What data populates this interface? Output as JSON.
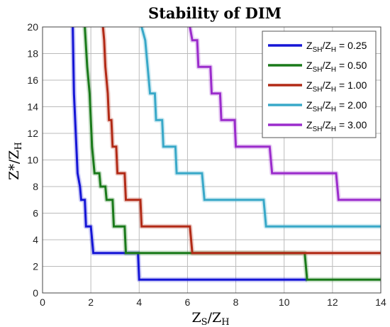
{
  "chart_data": {
    "type": "line",
    "title": "Stability of DIM",
    "xlabel": {
      "main": "Z",
      "sub1": "S",
      "slash": "/Z",
      "sub2": "H"
    },
    "ylabel": {
      "main": "Z*/Z",
      "sub": "H"
    },
    "xlim": [
      0,
      14
    ],
    "ylim": [
      0,
      20
    ],
    "xticks": [
      0,
      2,
      4,
      6,
      8,
      10,
      12,
      14
    ],
    "yticks": [
      0,
      2,
      4,
      6,
      8,
      10,
      12,
      14,
      16,
      18,
      20
    ],
    "grid": true,
    "legend_position": "top-right",
    "series": [
      {
        "name": "ZSH/ZH = 0.25",
        "legend": {
          "a": "Z",
          "asub": "SH",
          "b": "/Z",
          "bsub": "H",
          "value": " = 0.25"
        },
        "color": "#1515d6",
        "points": [
          [
            1.25,
            20
          ],
          [
            1.3,
            15
          ],
          [
            1.45,
            9
          ],
          [
            1.55,
            8
          ],
          [
            1.6,
            7
          ],
          [
            1.75,
            7
          ],
          [
            1.8,
            5
          ],
          [
            2.0,
            5
          ],
          [
            2.1,
            3
          ],
          [
            3.95,
            3
          ],
          [
            4.0,
            1
          ],
          [
            10.95,
            1
          ]
        ]
      },
      {
        "name": "ZSH/ZH = 0.50",
        "legend": {
          "a": "Z",
          "asub": "SH",
          "b": "/Z",
          "bsub": "H",
          "value": " = 0.50"
        },
        "color": "#1a7a1a",
        "points": [
          [
            1.75,
            20
          ],
          [
            1.85,
            17
          ],
          [
            1.95,
            15
          ],
          [
            2.0,
            13
          ],
          [
            2.05,
            11
          ],
          [
            2.15,
            9
          ],
          [
            2.35,
            9
          ],
          [
            2.4,
            8
          ],
          [
            2.6,
            8
          ],
          [
            2.65,
            7
          ],
          [
            2.9,
            7
          ],
          [
            2.95,
            5
          ],
          [
            3.4,
            5
          ],
          [
            3.45,
            3
          ],
          [
            10.85,
            3
          ],
          [
            10.95,
            1
          ],
          [
            14,
            1
          ]
        ]
      },
      {
        "name": "ZSH/ZH = 1.00",
        "legend": {
          "a": "Z",
          "asub": "SH",
          "b": "/Z",
          "bsub": "H",
          "value": " = 1.00"
        },
        "color": "#b22a16",
        "points": [
          [
            2.5,
            20
          ],
          [
            2.55,
            19
          ],
          [
            2.6,
            17
          ],
          [
            2.7,
            15
          ],
          [
            2.75,
            13
          ],
          [
            2.85,
            13
          ],
          [
            2.9,
            11
          ],
          [
            3.05,
            11
          ],
          [
            3.1,
            9
          ],
          [
            3.4,
            9
          ],
          [
            3.45,
            7
          ],
          [
            4.05,
            7
          ],
          [
            4.1,
            5
          ],
          [
            6.1,
            5
          ],
          [
            6.2,
            3
          ],
          [
            14,
            3
          ]
        ]
      },
      {
        "name": "ZSH/ZH = 2.00",
        "legend": {
          "a": "Z",
          "asub": "SH",
          "b": "/Z",
          "bsub": "H",
          "value": " = 2.00"
        },
        "color": "#38a8c8",
        "points": [
          [
            4.1,
            20
          ],
          [
            4.25,
            19
          ],
          [
            4.35,
            17
          ],
          [
            4.45,
            15
          ],
          [
            4.65,
            15
          ],
          [
            4.7,
            13
          ],
          [
            4.95,
            13
          ],
          [
            5.0,
            11
          ],
          [
            5.5,
            11
          ],
          [
            5.55,
            9
          ],
          [
            6.6,
            9
          ],
          [
            6.7,
            7
          ],
          [
            9.15,
            7
          ],
          [
            9.25,
            5
          ],
          [
            14,
            5
          ]
        ]
      },
      {
        "name": "ZSH/ZH = 3.00",
        "legend": {
          "a": "Z",
          "asub": "SH",
          "b": "/Z",
          "bsub": "H",
          "value": " = 3.00"
        },
        "color": "#9b2ccc",
        "points": [
          [
            6.1,
            20
          ],
          [
            6.2,
            19
          ],
          [
            6.4,
            19
          ],
          [
            6.45,
            17
          ],
          [
            6.95,
            17
          ],
          [
            7.0,
            15
          ],
          [
            7.35,
            15
          ],
          [
            7.4,
            13
          ],
          [
            7.95,
            13
          ],
          [
            8.0,
            11
          ],
          [
            9.4,
            11
          ],
          [
            9.5,
            9
          ],
          [
            12.15,
            9
          ],
          [
            12.25,
            7
          ],
          [
            14,
            7
          ]
        ]
      }
    ]
  }
}
